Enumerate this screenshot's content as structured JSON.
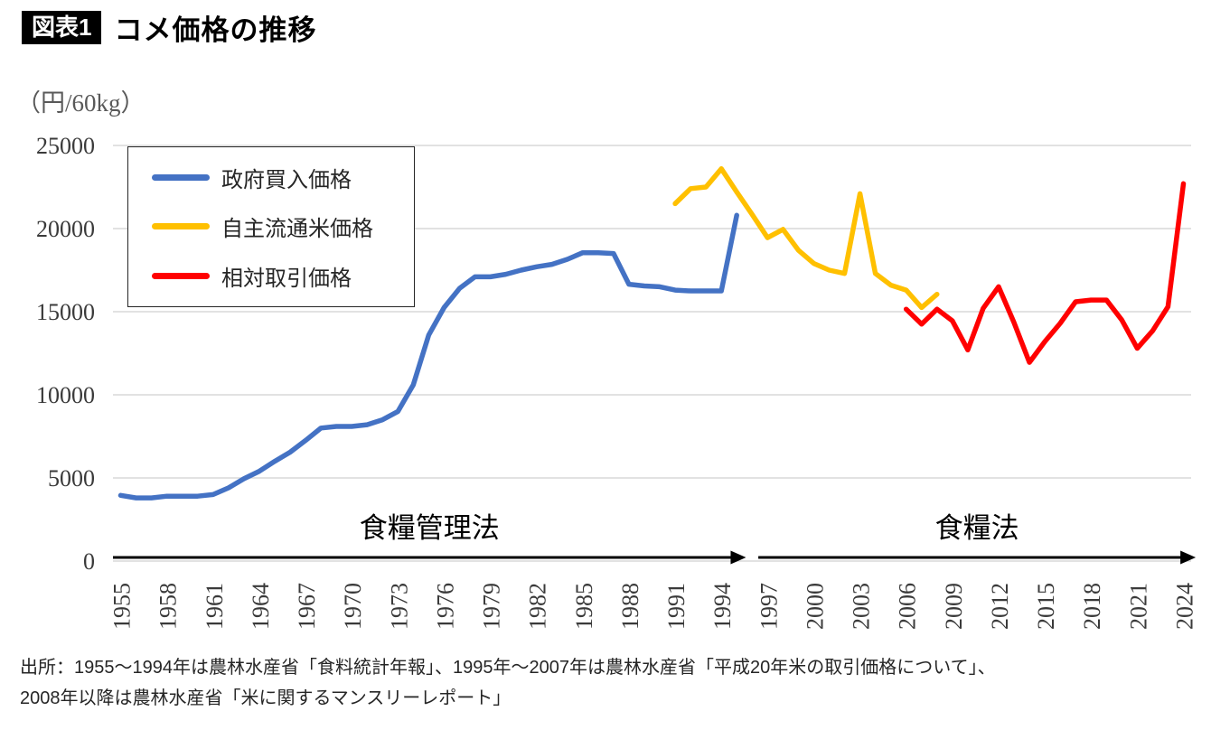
{
  "page": {
    "figure_tag": "図表1",
    "title": "コメ価格の推移",
    "unit_label": "（円/60kg）",
    "source_lines": [
      "出所：1955～1994年は農林水産省「食料統計年報」、1995年～2007年は農林水産省「平成20年米の取引価格について」、",
      "2008年以降は農林水産省「米に関するマンスリーレポート」"
    ]
  },
  "annotations": [
    {
      "label": "食糧管理法",
      "from_year": 1954.5,
      "to_year": 1995.6
    },
    {
      "label": "食糧法",
      "from_year": 1996.4,
      "to_year": 2024.8
    }
  ],
  "chart_data": {
    "type": "line",
    "title": "コメ価格の推移",
    "ylabel": "円/60kg",
    "ylim": [
      0,
      25000
    ],
    "x_range": [
      1955,
      2024
    ],
    "y_ticks": [
      0,
      5000,
      10000,
      15000,
      20000,
      25000
    ],
    "x_ticks": [
      1955,
      1958,
      1961,
      1964,
      1967,
      1970,
      1973,
      1976,
      1979,
      1982,
      1985,
      1988,
      1991,
      1994,
      1997,
      2000,
      2003,
      2006,
      2009,
      2012,
      2015,
      2018,
      2021,
      2024
    ],
    "grid": "horizontal-only",
    "gridline_color": "#d9d9d9",
    "legend_position": "top-left",
    "series": [
      {
        "name": "政府買入価格",
        "color": "#4472c4",
        "points": [
          [
            1955,
            3950
          ],
          [
            1956,
            3800
          ],
          [
            1957,
            3800
          ],
          [
            1958,
            3900
          ],
          [
            1959,
            3900
          ],
          [
            1960,
            3900
          ],
          [
            1961,
            4000
          ],
          [
            1962,
            4400
          ],
          [
            1963,
            4950
          ],
          [
            1964,
            5400
          ],
          [
            1965,
            6000
          ],
          [
            1966,
            6550
          ],
          [
            1967,
            7250
          ],
          [
            1968,
            8000
          ],
          [
            1969,
            8100
          ],
          [
            1970,
            8100
          ],
          [
            1971,
            8200
          ],
          [
            1972,
            8500
          ],
          [
            1973,
            9000
          ],
          [
            1974,
            10600
          ],
          [
            1975,
            13600
          ],
          [
            1976,
            15250
          ],
          [
            1977,
            16400
          ],
          [
            1978,
            17100
          ],
          [
            1979,
            17100
          ],
          [
            1980,
            17250
          ],
          [
            1981,
            17500
          ],
          [
            1982,
            17700
          ],
          [
            1983,
            17850
          ],
          [
            1984,
            18150
          ],
          [
            1985,
            18550
          ],
          [
            1986,
            18550
          ],
          [
            1987,
            18500
          ],
          [
            1988,
            16650
          ],
          [
            1989,
            16550
          ],
          [
            1990,
            16500
          ],
          [
            1991,
            16300
          ],
          [
            1992,
            16250
          ],
          [
            1993,
            16250
          ],
          [
            1994,
            16250
          ],
          [
            1995,
            20800
          ]
        ]
      },
      {
        "name": "自主流通米価格",
        "color": "#ffc000",
        "points": [
          [
            1991,
            21500
          ],
          [
            1992,
            22400
          ],
          [
            1993,
            22500
          ],
          [
            1994,
            23600
          ],
          [
            1995,
            22200
          ],
          [
            1996,
            20850
          ],
          [
            1997,
            19450
          ],
          [
            1998,
            19950
          ],
          [
            1999,
            18700
          ],
          [
            2000,
            17900
          ],
          [
            2001,
            17500
          ],
          [
            2002,
            17300
          ],
          [
            2003,
            22100
          ],
          [
            2004,
            17300
          ],
          [
            2005,
            16600
          ],
          [
            2006,
            16300
          ],
          [
            2007,
            15250
          ],
          [
            2008,
            16050
          ]
        ]
      },
      {
        "name": "相対取引価格",
        "color": "#ff0000",
        "points": [
          [
            2006,
            15150
          ],
          [
            2007,
            14250
          ],
          [
            2008,
            15150
          ],
          [
            2009,
            14450
          ],
          [
            2010,
            12700
          ],
          [
            2011,
            15200
          ],
          [
            2012,
            16500
          ],
          [
            2013,
            14350
          ],
          [
            2014,
            11950
          ],
          [
            2015,
            13200
          ],
          [
            2016,
            14300
          ],
          [
            2017,
            15600
          ],
          [
            2018,
            15700
          ],
          [
            2019,
            15700
          ],
          [
            2020,
            14500
          ],
          [
            2021,
            12800
          ],
          [
            2022,
            13850
          ],
          [
            2023,
            15300
          ],
          [
            2024,
            22700
          ]
        ]
      }
    ]
  }
}
